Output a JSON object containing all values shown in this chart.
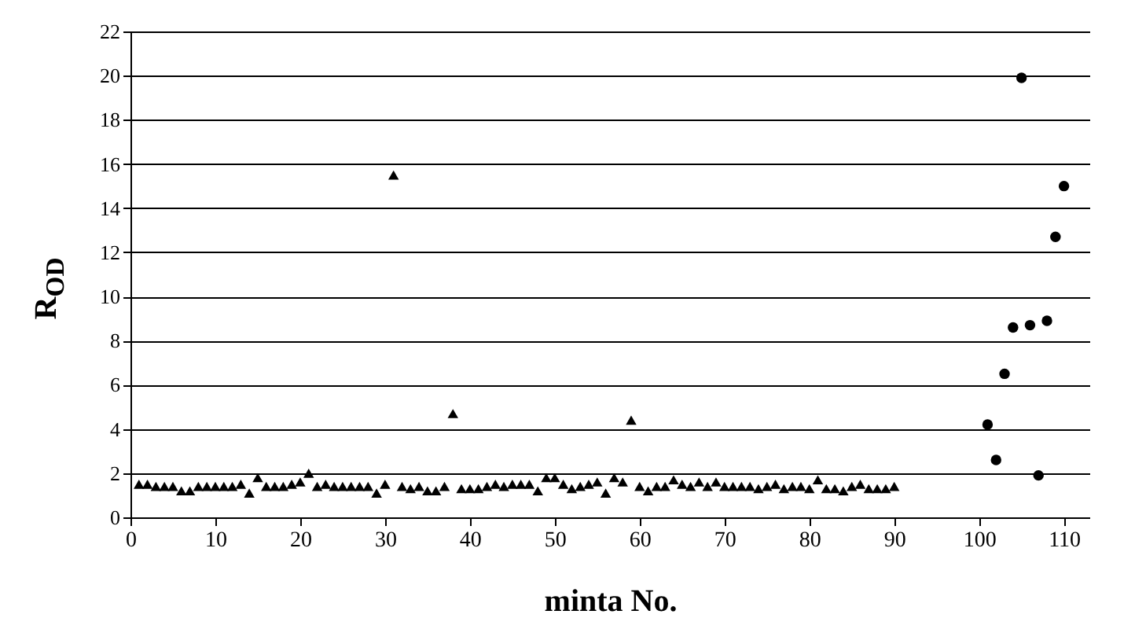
{
  "chart_data": {
    "type": "scatter",
    "xlabel": "minta No.",
    "ylabel": "R$_{OD}$",
    "xlim": [
      0,
      113
    ],
    "xticks": [
      0,
      10,
      20,
      30,
      40,
      50,
      60,
      70,
      80,
      90,
      100,
      110
    ],
    "ylim": [
      0,
      22
    ],
    "yticks": [
      0,
      2,
      4,
      6,
      8,
      10,
      12,
      14,
      16,
      18,
      20,
      22
    ],
    "grid": "y",
    "series": [
      {
        "color": "#000000",
        "marker": "triangle",
        "x": [
          1,
          2,
          3,
          4,
          5,
          6,
          7,
          8,
          9,
          10,
          11,
          12,
          13,
          14,
          15,
          16,
          17,
          18,
          19,
          20,
          21,
          22,
          23,
          24,
          25,
          26,
          27,
          28,
          29,
          30,
          31,
          32,
          33,
          34,
          35,
          36,
          37,
          38,
          39,
          40,
          41,
          42,
          43,
          44,
          45,
          46,
          47,
          48,
          49,
          50,
          51,
          52,
          53,
          54,
          55,
          56,
          57,
          58,
          59,
          60,
          61,
          62,
          63,
          64,
          65,
          66,
          67,
          68,
          69,
          70,
          71,
          72,
          73,
          74,
          75,
          76,
          77,
          78,
          79,
          80,
          81,
          82,
          83,
          84,
          85,
          86,
          87,
          88,
          89,
          90
        ],
        "values": [
          1.5,
          1.5,
          1.4,
          1.4,
          1.4,
          1.2,
          1.2,
          1.4,
          1.4,
          1.4,
          1.4,
          1.4,
          1.5,
          1.1,
          1.8,
          1.4,
          1.4,
          1.4,
          1.5,
          1.6,
          2.0,
          1.4,
          1.5,
          1.4,
          1.4,
          1.4,
          1.4,
          1.4,
          1.1,
          1.5,
          15.5,
          1.4,
          1.3,
          1.4,
          1.2,
          1.2,
          1.4,
          4.7,
          1.3,
          1.3,
          1.3,
          1.4,
          1.5,
          1.4,
          1.5,
          1.5,
          1.5,
          1.2,
          1.8,
          1.8,
          1.5,
          1.3,
          1.4,
          1.5,
          1.6,
          1.1,
          1.8,
          1.6,
          4.4,
          1.4,
          1.2,
          1.4,
          1.4,
          1.7,
          1.5,
          1.4,
          1.6,
          1.4,
          1.6,
          1.4,
          1.4,
          1.4,
          1.4,
          1.3,
          1.4,
          1.5,
          1.3,
          1.4,
          1.4,
          1.3,
          1.7,
          1.3,
          1.3,
          1.2,
          1.4,
          1.5,
          1.3,
          1.3,
          1.3,
          1.4
        ]
      },
      {
        "color": "#000000",
        "marker": "circle",
        "x": [
          101,
          102,
          103,
          104,
          105,
          106,
          107,
          108,
          109,
          110
        ],
        "values": [
          4.2,
          2.6,
          6.5,
          8.6,
          19.9,
          8.7,
          1.9,
          8.9,
          12.7,
          15.0
        ]
      }
    ]
  }
}
